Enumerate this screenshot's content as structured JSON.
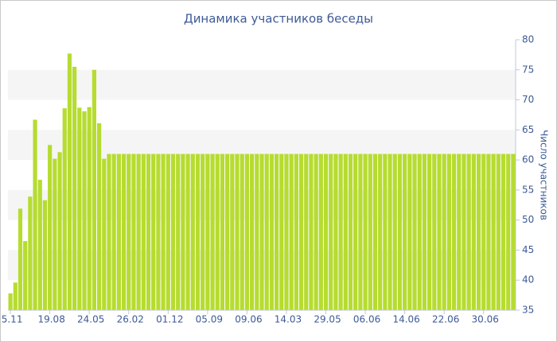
{
  "chart_data": {
    "type": "bar",
    "title": "Динамика участников беседы",
    "y_label": "Число участников",
    "categories": [
      "5.11",
      null,
      null,
      null,
      null,
      null,
      null,
      null,
      "19.08",
      null,
      null,
      null,
      null,
      null,
      null,
      null,
      "24.05",
      null,
      null,
      null,
      null,
      null,
      null,
      null,
      "26.02",
      null,
      null,
      null,
      null,
      null,
      null,
      null,
      "01.12",
      null,
      null,
      null,
      null,
      null,
      null,
      null,
      "05.09",
      null,
      null,
      null,
      null,
      null,
      null,
      null,
      "09.06",
      null,
      null,
      null,
      null,
      null,
      null,
      null,
      "14.03",
      null,
      null,
      null,
      null,
      null,
      null,
      null,
      "29.05",
      null,
      null,
      null,
      null,
      null,
      null,
      null,
      "06.06",
      null,
      null,
      null,
      null,
      null,
      null,
      null,
      "14.06",
      null,
      null,
      null,
      null,
      null,
      null,
      null,
      "22.06",
      null,
      null,
      null,
      null,
      null,
      null,
      null,
      "30.06",
      null,
      null,
      null,
      null,
      null,
      null
    ],
    "values": [
      37.8,
      39.6,
      51.9,
      46.5,
      53.9,
      66.7,
      56.7,
      53.3,
      62.5,
      60.2,
      61.3,
      68.6,
      77.7,
      75.5,
      68.7,
      68.1,
      68.8,
      75,
      66.1,
      60.2,
      61,
      61,
      61,
      61,
      61,
      61,
      61,
      61,
      61,
      61,
      61,
      61,
      61,
      61,
      61,
      61,
      61,
      61,
      61,
      61,
      61,
      61,
      61,
      61,
      61,
      61,
      61,
      61,
      61,
      61,
      61,
      61,
      61,
      61,
      61,
      61,
      61,
      61,
      61,
      61,
      61,
      61,
      61,
      61,
      61,
      61,
      61,
      61,
      61,
      61,
      61,
      61,
      61,
      61,
      61,
      61,
      61,
      61,
      61,
      61,
      61,
      61,
      61,
      61,
      61,
      61,
      61,
      61,
      61,
      61,
      61,
      61,
      61,
      61,
      61,
      61,
      61,
      61,
      61,
      61,
      61,
      61,
      61
    ],
    "color": "#b6dc30",
    "ylim": [
      35,
      80
    ],
    "yticks": [
      35,
      40,
      45,
      50,
      55,
      60,
      65,
      70,
      75,
      80
    ],
    "grid": true,
    "y_axis_side": "right"
  }
}
